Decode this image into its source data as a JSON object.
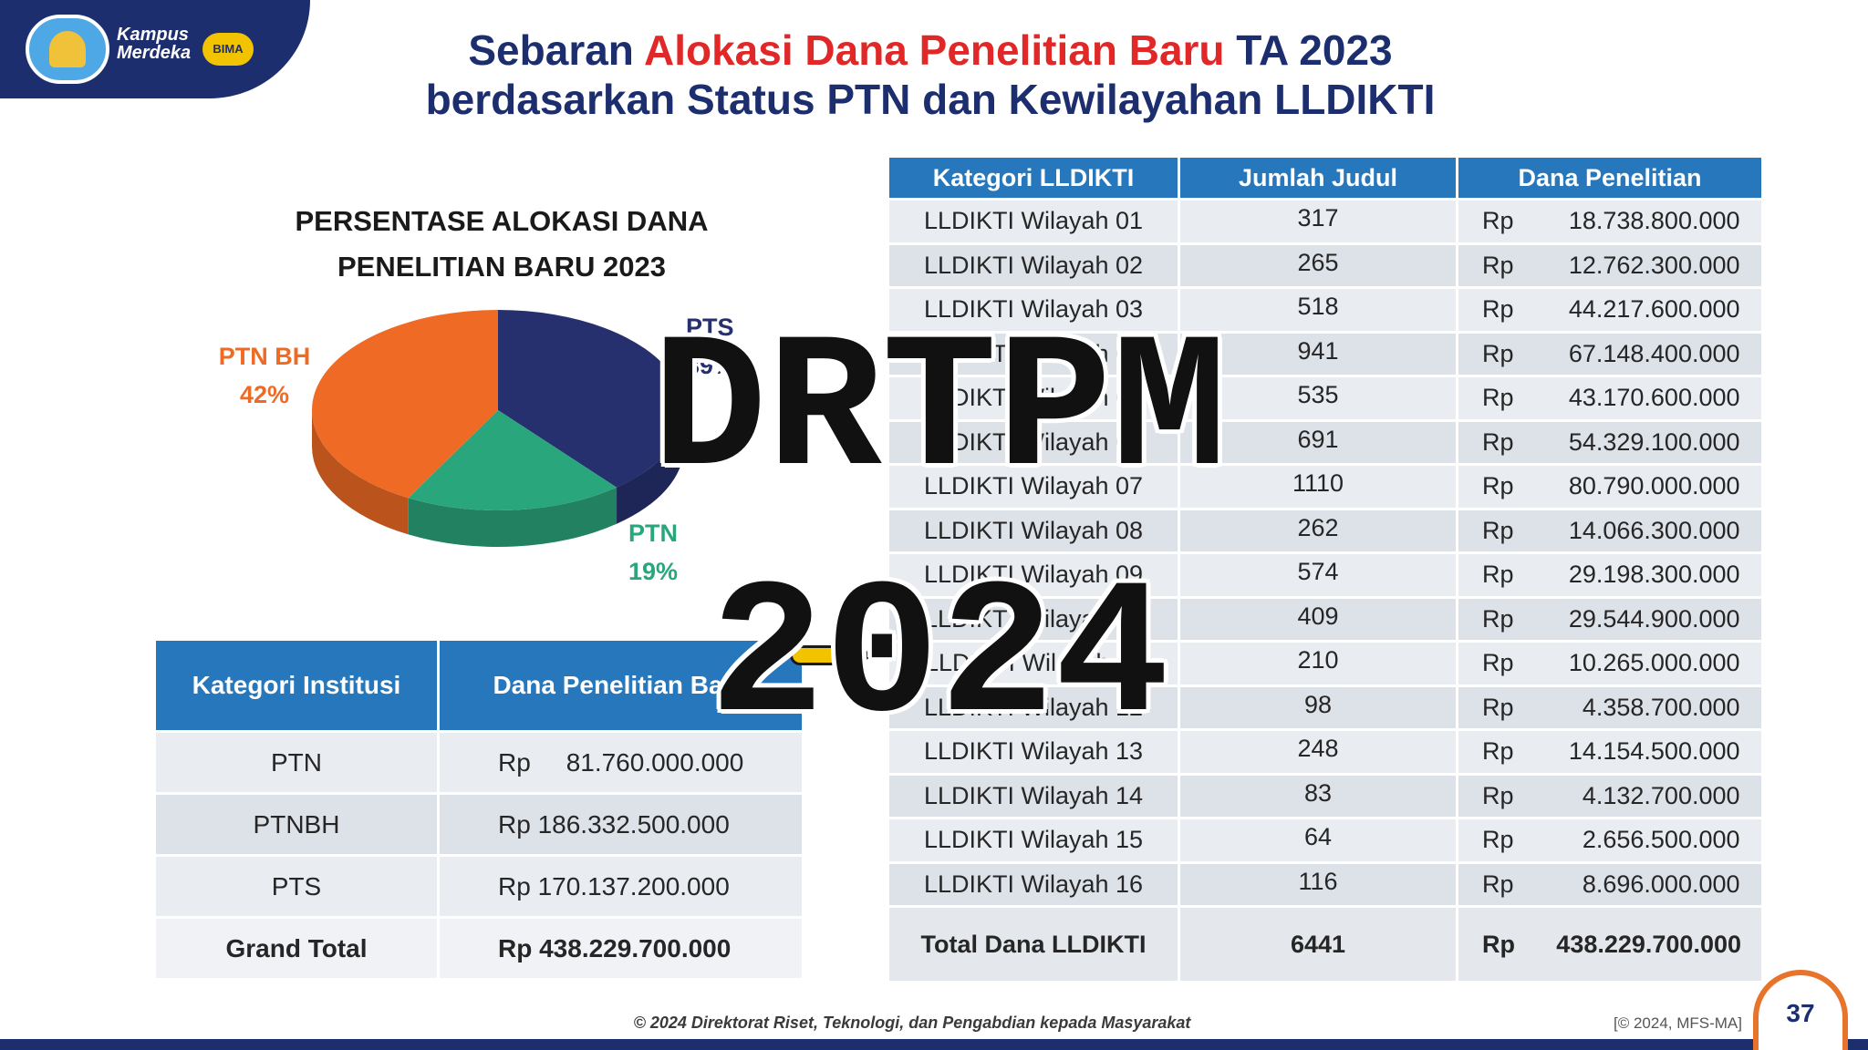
{
  "header": {
    "logo_line1": "Kampus",
    "logo_line2": "Merdeka",
    "badge": "BIMA",
    "title_line1_pre": "Sebaran ",
    "title_line1_accent": "Alokasi Dana Penelitian Baru",
    "title_line1_post": " TA 2023",
    "title_line2": "berdasarkan Status PTN dan Kewilayahan LLDIKTI"
  },
  "colors": {
    "navy": "#1c2e6e",
    "accent_red": "#e02828",
    "table_header": "#2677bb",
    "pts": "#27306f",
    "ptn": "#2aa67c",
    "ptnbh": "#ef6a24"
  },
  "chart_data": {
    "type": "pie",
    "title": "PERSENTASE ALOKASI DANA PENELITIAN BARU 2023",
    "slices": [
      {
        "label": "PTS",
        "value": 39,
        "percent_text": "39%",
        "color": "#27306f"
      },
      {
        "label": "PTN",
        "value": 19,
        "percent_text": "19%",
        "color": "#2aa67c"
      },
      {
        "label": "PTN BH",
        "value": 42,
        "percent_text": "42%",
        "color": "#ef6a24"
      }
    ]
  },
  "institution_table": {
    "headers": [
      "Kategori  Institusi",
      "Dana Penelitian Baru"
    ],
    "rows": [
      {
        "kategori": "PTN",
        "dana": "Rp     81.760.000.000"
      },
      {
        "kategori": "PTNBH",
        "dana": "Rp 186.332.500.000"
      },
      {
        "kategori": "PTS",
        "dana": "Rp 170.137.200.000"
      }
    ],
    "total": {
      "label": "Grand Total",
      "dana": "Rp 438.229.700.000"
    }
  },
  "lldikti_table": {
    "headers": [
      "Kategori LLDIKTI",
      "Jumlah Judul",
      "Dana Penelitian"
    ],
    "rows": [
      {
        "wilayah": "LLDIKTI Wilayah 01",
        "judul": "317",
        "rp": "Rp",
        "dana": "18.738.800.000"
      },
      {
        "wilayah": "LLDIKTI Wilayah 02",
        "judul": "265",
        "rp": "Rp",
        "dana": "12.762.300.000"
      },
      {
        "wilayah": "LLDIKTI Wilayah 03",
        "judul": "518",
        "rp": "Rp",
        "dana": "44.217.600.000"
      },
      {
        "wilayah": "LLDIKTI Wilayah 04",
        "judul": "941",
        "rp": "Rp",
        "dana": "67.148.400.000"
      },
      {
        "wilayah": "LLDIKTI Wilayah 05",
        "judul": "535",
        "rp": "Rp",
        "dana": "43.170.600.000"
      },
      {
        "wilayah": "LLDIKTI Wilayah 06",
        "judul": "691",
        "rp": "Rp",
        "dana": "54.329.100.000"
      },
      {
        "wilayah": "LLDIKTI Wilayah 07",
        "judul": "1110",
        "rp": "Rp",
        "dana": "80.790.000.000"
      },
      {
        "wilayah": "LLDIKTI Wilayah 08",
        "judul": "262",
        "rp": "Rp",
        "dana": "14.066.300.000"
      },
      {
        "wilayah": "LLDIKTI Wilayah 09",
        "judul": "574",
        "rp": "Rp",
        "dana": "29.198.300.000"
      },
      {
        "wilayah": "LLDIKTI Wilayah 10",
        "judul": "409",
        "rp": "Rp",
        "dana": "29.544.900.000"
      },
      {
        "wilayah": "LLDIKTI Wilayah 11",
        "judul": "210",
        "rp": "Rp",
        "dana": "10.265.000.000"
      },
      {
        "wilayah": "LLDIKTI Wilayah 12",
        "judul": "98",
        "rp": "Rp",
        "dana": "4.358.700.000"
      },
      {
        "wilayah": "LLDIKTI Wilayah 13",
        "judul": "248",
        "rp": "Rp",
        "dana": "14.154.500.000"
      },
      {
        "wilayah": "LLDIKTI Wilayah 14",
        "judul": "83",
        "rp": "Rp",
        "dana": "4.132.700.000"
      },
      {
        "wilayah": "LLDIKTI Wilayah 15",
        "judul": "64",
        "rp": "Rp",
        "dana": "2.656.500.000"
      },
      {
        "wilayah": "LLDIKTI Wilayah 16",
        "judul": "116",
        "rp": "Rp",
        "dana": "8.696.000.000"
      }
    ],
    "total": {
      "label": "Total Dana LLDIKTI",
      "judul": "6441",
      "rp": "Rp",
      "dana": "438.229.700.000"
    }
  },
  "watermark": {
    "line1": "DRTPM",
    "line2": "2024"
  },
  "footer": {
    "text": "© 2024 Direktorat Riset, Teknologi, dan Pengabdian kepada Masyarakat",
    "copyright": "[© 2024, MFS-MA]",
    "page_number": "37"
  }
}
